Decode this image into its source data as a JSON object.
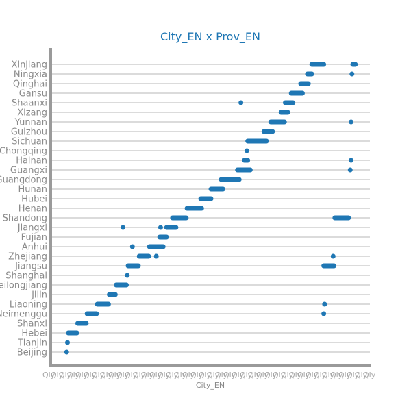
{
  "chart_data": {
    "type": "scatter",
    "title": "City_EN x Prov_EN",
    "xlabel": "City_EN",
    "ylabel": "",
    "x_tick_labels": "dense, overlapping (unreadable)",
    "categories": [
      "Beijing",
      "Tianjin",
      "Hebei",
      "Shanxi",
      "Neimenggu",
      "Liaoning",
      "Jilin",
      "Heilongjiang",
      "Shanghai",
      "Jiangsu",
      "Zhejiang",
      "Anhui",
      "Fujian",
      "Jiangxi",
      "Shandong",
      "Henan",
      "Hubei",
      "Hunan",
      "Guangdong",
      "Guangxi",
      "Hainan",
      "Chongqing",
      "Sichuan",
      "Guizhou",
      "Yunnan",
      "Xizang",
      "Shaanxi",
      "Gansu",
      "Qinghai",
      "Ningxia",
      "Xinjiang"
    ],
    "xlim": [
      0,
      340
    ],
    "grid": true,
    "series": [
      {
        "color": "#1f77b4",
        "segments": [
          {
            "prov": "Beijing",
            "x_start": 1,
            "x_end": 1
          },
          {
            "prov": "Tianjin",
            "x_start": 2,
            "x_end": 2
          },
          {
            "prov": "Hebei",
            "x_start": 3,
            "x_end": 13
          },
          {
            "prov": "Shanxi",
            "x_start": 14,
            "x_end": 24
          },
          {
            "prov": "Neimenggu",
            "x_start": 25,
            "x_end": 36
          },
          {
            "prov": "Liaoning",
            "x_start": 37,
            "x_end": 50
          },
          {
            "prov": "Liaoning",
            "x_start": 303,
            "x_end": 303
          },
          {
            "prov": "Neimenggu",
            "x_start": 302,
            "x_end": 302
          },
          {
            "prov": "Jilin",
            "x_start": 51,
            "x_end": 58
          },
          {
            "prov": "Heilongjiang",
            "x_start": 59,
            "x_end": 71
          },
          {
            "prov": "Shanghai",
            "x_start": 72,
            "x_end": 72
          },
          {
            "prov": "Jiangsu",
            "x_start": 73,
            "x_end": 85
          },
          {
            "prov": "Jiangsu",
            "x_start": 302,
            "x_end": 314
          },
          {
            "prov": "Zhejiang",
            "x_start": 86,
            "x_end": 97
          },
          {
            "prov": "Zhejiang",
            "x_start": 106,
            "x_end": 106
          },
          {
            "prov": "Zhejiang",
            "x_start": 313,
            "x_end": 313
          },
          {
            "prov": "Anhui",
            "x_start": 78,
            "x_end": 78
          },
          {
            "prov": "Anhui",
            "x_start": 98,
            "x_end": 114
          },
          {
            "prov": "Fujian",
            "x_start": 110,
            "x_end": 118
          },
          {
            "prov": "Jiangxi",
            "x_start": 67,
            "x_end": 67
          },
          {
            "prov": "Jiangxi",
            "x_start": 111,
            "x_end": 111
          },
          {
            "prov": "Jiangxi",
            "x_start": 118,
            "x_end": 129
          },
          {
            "prov": "Shandong",
            "x_start": 125,
            "x_end": 141
          },
          {
            "prov": "Shandong",
            "x_start": 315,
            "x_end": 331
          },
          {
            "prov": "Henan",
            "x_start": 142,
            "x_end": 159
          },
          {
            "prov": "Hubei",
            "x_start": 158,
            "x_end": 170
          },
          {
            "prov": "Hunan",
            "x_start": 170,
            "x_end": 184
          },
          {
            "prov": "Guangdong",
            "x_start": 182,
            "x_end": 203
          },
          {
            "prov": "Guangxi",
            "x_start": 201,
            "x_end": 216
          },
          {
            "prov": "Guangxi",
            "x_start": 333,
            "x_end": 333
          },
          {
            "prov": "Hainan",
            "x_start": 209,
            "x_end": 213
          },
          {
            "prov": "Hainan",
            "x_start": 334,
            "x_end": 334
          },
          {
            "prov": "Chongqing",
            "x_start": 212,
            "x_end": 212
          },
          {
            "prov": "Sichuan",
            "x_start": 213,
            "x_end": 235
          },
          {
            "prov": "Guizhou",
            "x_start": 232,
            "x_end": 242
          },
          {
            "prov": "Yunnan",
            "x_start": 240,
            "x_end": 256
          },
          {
            "prov": "Yunnan",
            "x_start": 334,
            "x_end": 334
          },
          {
            "prov": "Xizang",
            "x_start": 252,
            "x_end": 260
          },
          {
            "prov": "Shaanxi",
            "x_start": 205,
            "x_end": 205
          },
          {
            "prov": "Shaanxi",
            "x_start": 257,
            "x_end": 266
          },
          {
            "prov": "Gansu",
            "x_start": 264,
            "x_end": 277
          },
          {
            "prov": "Qinghai",
            "x_start": 275,
            "x_end": 284
          },
          {
            "prov": "Ningxia",
            "x_start": 283,
            "x_end": 288
          },
          {
            "prov": "Ningxia",
            "x_start": 335,
            "x_end": 335
          },
          {
            "prov": "Xinjiang",
            "x_start": 288,
            "x_end": 302
          },
          {
            "prov": "Xinjiang",
            "x_start": 336,
            "x_end": 339
          }
        ]
      }
    ]
  }
}
